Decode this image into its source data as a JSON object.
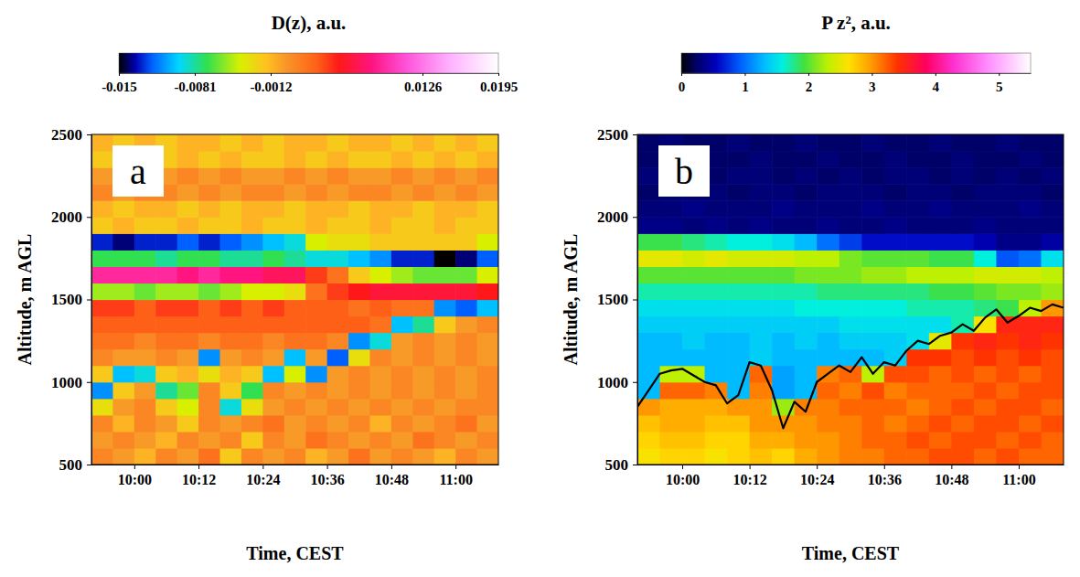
{
  "chart_data": [
    {
      "type": "heatmap",
      "title": "D(z), a.u.",
      "panel_label": "a",
      "x_label": "Time, CEST",
      "y_label": "Altitude, m AGL",
      "xlim": [
        592,
        668
      ],
      "ylim": [
        500,
        2500
      ],
      "xticks": [
        {
          "value": 600,
          "label": "10:00"
        },
        {
          "value": 612,
          "label": "10:12"
        },
        {
          "value": 624,
          "label": "10:24"
        },
        {
          "value": 636,
          "label": "10:36"
        },
        {
          "value": 648,
          "label": "10:48"
        },
        {
          "value": 660,
          "label": "11:00"
        }
      ],
      "yticks": [
        500,
        1000,
        1500,
        2000,
        2500
      ],
      "colorbar_range": [
        -0.015,
        0.0195
      ],
      "colorbar_ticks": [
        -0.015,
        -0.0012,
        -0.0081,
        0.0126,
        0.0195
      ],
      "x": [
        592,
        596,
        600,
        604,
        608,
        612,
        616,
        620,
        624,
        628,
        632,
        636,
        640,
        644,
        648,
        652,
        656,
        660,
        664,
        668
      ],
      "y": [
        500,
        600,
        700,
        800,
        900,
        1000,
        1100,
        1200,
        1300,
        1400,
        1500,
        1600,
        1700,
        1800,
        1900,
        2000,
        2100,
        2200,
        2300,
        2400,
        2500
      ],
      "values": [
        [
          0.001,
          0.0,
          -0.001,
          0.001,
          0.0,
          0.002,
          -0.002,
          0.001,
          0.0,
          0.001,
          -0.001,
          0.0,
          0.002,
          0.0,
          0.001,
          0.0,
          -0.001,
          0.001,
          0.0
        ],
        [
          0.0,
          0.001,
          0.0,
          -0.001,
          0.001,
          0.0,
          0.001,
          -0.002,
          0.001,
          0.0,
          0.002,
          0.001,
          0.0,
          0.001,
          0.0,
          0.002,
          0.001,
          0.0,
          0.001
        ],
        [
          0.001,
          -0.001,
          0.001,
          0.0,
          -0.002,
          0.001,
          0.0,
          0.001,
          0.002,
          0.0,
          0.001,
          0.0,
          0.001,
          -0.001,
          0.001,
          0.0,
          0.001,
          0.002,
          0.0
        ],
        [
          -0.003,
          0.0,
          0.001,
          -0.002,
          -0.004,
          0.001,
          -0.009,
          -0.003,
          0.0,
          0.001,
          0.0,
          0.001,
          0.0,
          0.001,
          0.0,
          0.001,
          0.0,
          0.001,
          0.001
        ],
        [
          -0.011,
          -0.002,
          0.0,
          -0.008,
          -0.006,
          0.001,
          -0.002,
          -0.007,
          0.001,
          0.0,
          0.001,
          0.0,
          0.001,
          0.0,
          0.001,
          0.0,
          0.001,
          0.0,
          0.001
        ],
        [
          -0.002,
          -0.01,
          -0.009,
          -0.002,
          -0.001,
          -0.003,
          -0.001,
          -0.002,
          -0.01,
          -0.004,
          -0.011,
          0.0,
          0.001,
          0.0,
          0.001,
          0.0,
          0.001,
          0.0,
          0.001
        ],
        [
          0.001,
          0.0,
          0.0,
          0.001,
          0.0,
          -0.011,
          0.0,
          0.001,
          0.0,
          -0.01,
          0.0,
          -0.012,
          -0.003,
          0.001,
          0.0,
          0.001,
          0.0,
          0.001,
          0.0
        ],
        [
          0.002,
          0.002,
          0.001,
          0.002,
          0.002,
          0.001,
          0.002,
          0.002,
          0.001,
          0.002,
          0.002,
          0.001,
          -0.011,
          -0.009,
          0.0,
          0.001,
          0.0,
          0.001,
          0.0
        ],
        [
          0.003,
          0.003,
          0.003,
          0.003,
          0.003,
          0.003,
          0.003,
          0.003,
          0.003,
          0.003,
          0.003,
          0.003,
          0.003,
          0.002,
          -0.01,
          -0.008,
          -0.002,
          0.0,
          0.001
        ],
        [
          0.004,
          0.004,
          0.003,
          0.004,
          0.004,
          0.003,
          0.004,
          0.003,
          0.004,
          0.003,
          0.003,
          0.003,
          0.002,
          0.003,
          0.002,
          0.002,
          -0.011,
          -0.012,
          -0.01
        ],
        [
          -0.005,
          -0.005,
          -0.006,
          -0.005,
          -0.005,
          -0.006,
          -0.005,
          -0.004,
          -0.004,
          -0.003,
          0.002,
          0.004,
          0.005,
          0.006,
          0.006,
          0.006,
          0.006,
          0.006,
          0.005
        ],
        [
          0.009,
          0.009,
          0.009,
          0.009,
          0.008,
          0.009,
          0.008,
          0.008,
          0.007,
          0.007,
          0.004,
          0.002,
          -0.002,
          -0.004,
          -0.005,
          -0.006,
          -0.006,
          -0.006,
          -0.004
        ],
        [
          -0.007,
          -0.007,
          -0.007,
          -0.008,
          -0.007,
          -0.007,
          -0.008,
          -0.008,
          -0.007,
          -0.008,
          -0.009,
          -0.009,
          -0.01,
          -0.011,
          -0.013,
          -0.013,
          -0.015,
          -0.014,
          -0.012
        ],
        [
          -0.013,
          -0.014,
          -0.013,
          -0.013,
          -0.012,
          -0.013,
          -0.012,
          -0.011,
          -0.01,
          -0.009,
          -0.004,
          -0.003,
          -0.003,
          -0.002,
          -0.002,
          -0.002,
          -0.002,
          -0.002,
          -0.004
        ],
        [
          -0.002,
          -0.001,
          -0.002,
          -0.002,
          -0.001,
          -0.002,
          -0.002,
          -0.001,
          -0.002,
          -0.002,
          -0.001,
          -0.002,
          -0.002,
          -0.001,
          -0.002,
          -0.002,
          -0.001,
          -0.002,
          -0.002
        ],
        [
          -0.001,
          -0.002,
          -0.001,
          -0.001,
          -0.002,
          -0.001,
          -0.002,
          -0.001,
          -0.001,
          -0.002,
          -0.001,
          -0.001,
          -0.002,
          -0.001,
          -0.001,
          -0.002,
          -0.001,
          -0.001,
          -0.002
        ],
        [
          0.001,
          0.0,
          0.001,
          0.001,
          0.0,
          0.001,
          0.0,
          0.001,
          0.001,
          0.0,
          0.001,
          0.0,
          0.001,
          0.001,
          0.0,
          0.001,
          0.0,
          0.001,
          0.0
        ],
        [
          0.0,
          0.001,
          0.0,
          0.0,
          0.001,
          0.0,
          0.001,
          0.0,
          0.0,
          0.001,
          0.0,
          0.001,
          0.0,
          0.0,
          0.001,
          0.0,
          0.001,
          0.0,
          0.001
        ],
        [
          -0.002,
          -0.001,
          -0.002,
          -0.002,
          -0.001,
          -0.002,
          -0.001,
          -0.002,
          -0.002,
          -0.001,
          -0.002,
          -0.001,
          -0.002,
          -0.002,
          -0.001,
          -0.002,
          -0.001,
          -0.002,
          -0.001
        ],
        [
          -0.001,
          -0.002,
          -0.001,
          -0.002,
          -0.001,
          -0.001,
          -0.002,
          -0.001,
          -0.002,
          -0.001,
          -0.001,
          -0.002,
          -0.001,
          -0.001,
          -0.002,
          -0.001,
          -0.002,
          -0.001,
          -0.002
        ]
      ]
    },
    {
      "type": "heatmap",
      "title": "P z², a.u.",
      "panel_label": "b",
      "x_label": "Time, CEST",
      "y_label": "Altitude, m AGL",
      "xlim": [
        592,
        668
      ],
      "ylim": [
        500,
        2500
      ],
      "xticks": [
        {
          "value": 600,
          "label": "10:00"
        },
        {
          "value": 612,
          "label": "10:12"
        },
        {
          "value": 624,
          "label": "10:24"
        },
        {
          "value": 636,
          "label": "10:36"
        },
        {
          "value": 648,
          "label": "10:48"
        },
        {
          "value": 660,
          "label": "11:00"
        }
      ],
      "yticks": [
        500,
        1000,
        1500,
        2000,
        2500
      ],
      "colorbar_range": [
        0,
        5.5
      ],
      "colorbar_ticks": [
        0,
        1,
        2,
        3,
        4,
        5
      ],
      "x": [
        592,
        596,
        600,
        604,
        608,
        612,
        616,
        620,
        624,
        628,
        632,
        636,
        640,
        644,
        648,
        652,
        656,
        660,
        664,
        668
      ],
      "y": [
        500,
        600,
        700,
        800,
        900,
        1000,
        1100,
        1200,
        1300,
        1400,
        1500,
        1600,
        1700,
        1800,
        1900,
        2000,
        2100,
        2200,
        2300,
        2400,
        2500
      ],
      "values": [
        [
          2.6,
          2.7,
          2.7,
          2.6,
          2.7,
          2.8,
          2.7,
          2.9,
          3.0,
          3.1,
          3.1,
          3.2,
          3.2,
          3.3,
          3.3,
          3.2,
          3.3,
          3.2,
          3.2
        ],
        [
          2.7,
          2.8,
          2.8,
          2.7,
          2.7,
          2.9,
          2.9,
          3.0,
          3.0,
          3.1,
          3.2,
          3.2,
          3.3,
          3.2,
          3.3,
          3.3,
          3.2,
          3.3,
          3.2
        ],
        [
          2.8,
          2.9,
          2.9,
          2.8,
          2.8,
          3.0,
          3.0,
          3.0,
          3.1,
          3.1,
          3.2,
          3.1,
          3.2,
          3.3,
          3.2,
          3.3,
          3.3,
          3.2,
          3.3
        ],
        [
          3.0,
          2.9,
          2.9,
          2.9,
          3.0,
          3.0,
          2.2,
          3.1,
          3.1,
          3.2,
          3.2,
          3.2,
          3.1,
          3.2,
          3.3,
          3.2,
          3.3,
          3.3,
          3.2
        ],
        [
          1.3,
          3.2,
          3.2,
          3.1,
          1.3,
          3.1,
          1.2,
          1.3,
          3.2,
          3.1,
          3.3,
          3.1,
          3.2,
          3.2,
          3.2,
          3.3,
          3.2,
          3.3,
          3.3
        ],
        [
          1.3,
          2.3,
          2.3,
          1.3,
          1.3,
          3.2,
          1.2,
          1.3,
          3.1,
          3.2,
          2.3,
          3.3,
          3.3,
          3.2,
          3.3,
          3.2,
          3.3,
          3.2,
          3.3
        ],
        [
          1.3,
          1.3,
          1.3,
          1.3,
          1.3,
          1.4,
          1.3,
          1.3,
          1.3,
          1.3,
          1.3,
          1.4,
          3.4,
          3.4,
          3.3,
          3.4,
          3.3,
          3.4,
          3.3
        ],
        [
          1.3,
          1.3,
          1.4,
          1.3,
          1.3,
          1.4,
          1.3,
          1.4,
          1.3,
          1.4,
          1.4,
          1.4,
          1.5,
          2.5,
          3.4,
          3.5,
          3.4,
          3.5,
          3.4
        ],
        [
          1.4,
          1.4,
          1.4,
          1.4,
          1.4,
          1.4,
          1.4,
          1.4,
          1.4,
          1.5,
          1.5,
          1.5,
          1.5,
          1.5,
          1.7,
          2.6,
          3.5,
          3.5,
          3.5
        ],
        [
          1.5,
          1.5,
          1.5,
          1.5,
          1.5,
          1.5,
          1.5,
          1.6,
          1.6,
          1.6,
          1.6,
          1.6,
          1.7,
          1.7,
          1.7,
          1.8,
          1.9,
          2.3,
          3.0
        ],
        [
          1.7,
          1.7,
          1.7,
          1.7,
          1.7,
          1.7,
          1.7,
          1.7,
          1.8,
          1.8,
          1.8,
          1.8,
          1.8,
          1.9,
          1.9,
          2.0,
          2.1,
          2.1,
          2.2
        ],
        [
          2.0,
          2.0,
          2.0,
          2.0,
          2.0,
          2.0,
          2.0,
          2.1,
          2.1,
          2.1,
          2.2,
          2.2,
          2.3,
          2.3,
          2.3,
          2.4,
          2.4,
          2.4,
          2.3
        ],
        [
          2.5,
          2.5,
          2.4,
          2.5,
          2.4,
          2.4,
          2.4,
          2.3,
          2.3,
          2.1,
          2.0,
          2.0,
          2.0,
          1.9,
          1.9,
          1.6,
          0.9,
          1.0,
          1.5
        ],
        [
          1.9,
          1.9,
          1.8,
          1.7,
          1.6,
          1.6,
          1.5,
          1.3,
          1.0,
          0.8,
          0.6,
          0.6,
          0.6,
          0.6,
          0.6,
          0.5,
          0.35,
          0.35,
          0.45
        ],
        [
          0.35,
          0.35,
          0.3,
          0.35,
          0.3,
          0.35,
          0.3,
          0.3,
          0.35,
          0.3,
          0.3,
          0.35,
          0.3,
          0.3,
          0.3,
          0.35,
          0.3,
          0.3,
          0.3
        ],
        [
          0.3,
          0.3,
          0.35,
          0.3,
          0.3,
          0.3,
          0.35,
          0.3,
          0.3,
          0.3,
          0.35,
          0.3,
          0.3,
          0.35,
          0.3,
          0.3,
          0.3,
          0.35,
          0.3
        ],
        [
          0.25,
          0.3,
          0.3,
          0.3,
          0.25,
          0.3,
          0.3,
          0.25,
          0.3,
          0.3,
          0.3,
          0.25,
          0.3,
          0.3,
          0.25,
          0.3,
          0.3,
          0.3,
          0.25
        ],
        [
          0.3,
          0.25,
          0.3,
          0.25,
          0.3,
          0.3,
          0.25,
          0.3,
          0.25,
          0.3,
          0.25,
          0.3,
          0.3,
          0.25,
          0.3,
          0.25,
          0.3,
          0.25,
          0.3
        ],
        [
          0.25,
          0.25,
          0.3,
          0.25,
          0.25,
          0.3,
          0.25,
          0.25,
          0.3,
          0.25,
          0.25,
          0.3,
          0.25,
          0.25,
          0.3,
          0.25,
          0.25,
          0.3,
          0.25
        ],
        [
          0.25,
          0.3,
          0.25,
          0.25,
          0.3,
          0.25,
          0.25,
          0.3,
          0.25,
          0.25,
          0.3,
          0.25,
          0.25,
          0.3,
          0.25,
          0.25,
          0.3,
          0.25,
          0.25
        ]
      ],
      "series": [
        {
          "type": "line",
          "color": "#000000",
          "x": [
            592,
            594,
            596,
            598,
            600,
            602,
            604,
            606,
            608,
            610,
            612,
            614,
            616,
            618,
            620,
            622,
            624,
            626,
            628,
            630,
            632,
            634,
            636,
            638,
            640,
            642,
            644,
            646,
            648,
            650,
            652,
            654,
            656,
            658,
            660,
            662,
            664,
            666,
            668
          ],
          "values": [
            850,
            950,
            1050,
            1070,
            1080,
            1040,
            1000,
            980,
            870,
            920,
            1120,
            1100,
            950,
            720,
            880,
            820,
            1000,
            1050,
            1100,
            1060,
            1150,
            1050,
            1120,
            1100,
            1190,
            1250,
            1230,
            1280,
            1300,
            1350,
            1310,
            1390,
            1440,
            1360,
            1400,
            1450,
            1430,
            1470,
            1450
          ]
        }
      ]
    }
  ]
}
